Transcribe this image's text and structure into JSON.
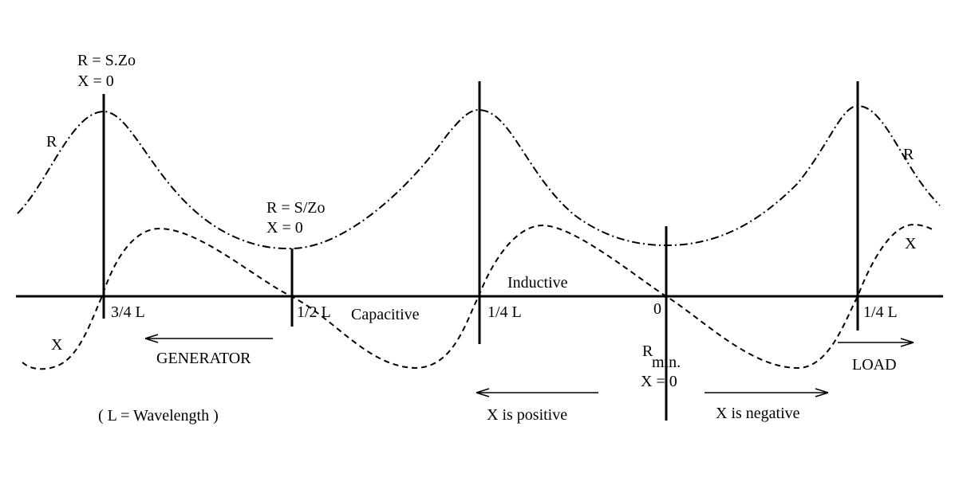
{
  "labels": {
    "max_r": "R = S.Zo",
    "max_x": "X = 0",
    "curve_r_left": "R",
    "min_r": "R = S/Zo",
    "min_x": "X = 0",
    "three_quarter": "3/4 L",
    "half": "1/2 L",
    "capacitive": "Capacitive",
    "quarter_mid": "1/4 L",
    "inductive": "Inductive",
    "zero": "0",
    "quarter_right": "1/4 L",
    "curve_x_left": "X",
    "generator": "GENERATOR",
    "wavelength": "( L = Wavelength )",
    "curve_r_right": "R",
    "curve_x_right": "X",
    "rmin_r": "R",
    "rmin_sub": "min.",
    "rmin_x": "X = 0",
    "x_positive": "X is positive",
    "x_negative": "X is negative",
    "load": "LOAD"
  }
}
